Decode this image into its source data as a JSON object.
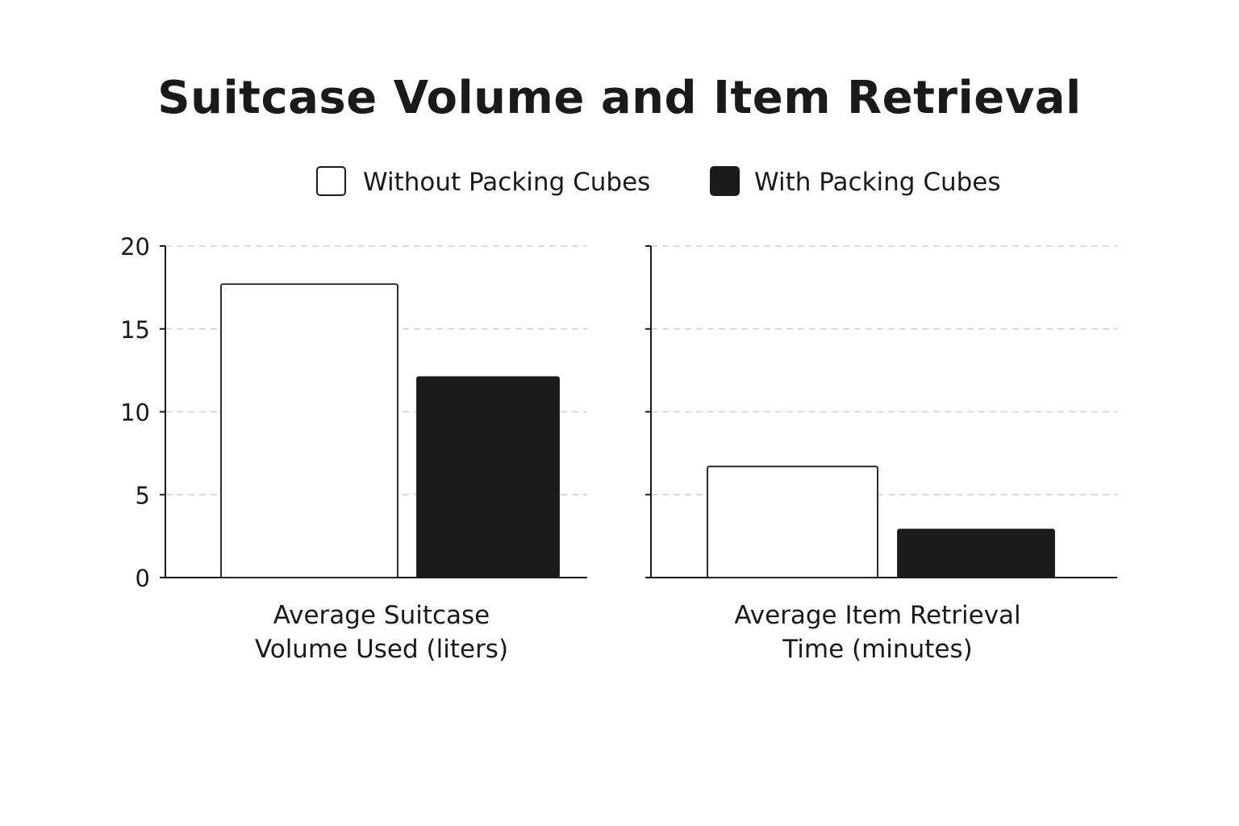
{
  "title": "Suitcase Volume and Item Retrieval",
  "colors": {
    "without": "#ffffff",
    "with": "#1b1b1b",
    "axis": "#1a1a1a",
    "grid": "#cfcfcf"
  },
  "chart_data": {
    "type": "bar",
    "title": "Suitcase Volume and Item Retrieval",
    "legend": {
      "placement": "top-center",
      "entries": [
        "Without Packing Cubes",
        "With Packing Cubes"
      ]
    },
    "ylim": [
      0,
      20
    ],
    "yticks": [
      0,
      5,
      10,
      15,
      20
    ],
    "grid": true,
    "categories": [
      "Average Suitcase Volume Used (liters)",
      "Average Item Retrieval Time (minutes)"
    ],
    "category_label_lines": [
      [
        "Average Suitcase",
        "Volume Used (liters)"
      ],
      [
        "Average Item Retrieval",
        "Time (minutes)"
      ]
    ],
    "series": [
      {
        "name": "Without Packing Cubes",
        "values": [
          17.7,
          6.7
        ]
      },
      {
        "name": "With Packing Cubes",
        "values": [
          12.1,
          2.9
        ]
      }
    ]
  }
}
